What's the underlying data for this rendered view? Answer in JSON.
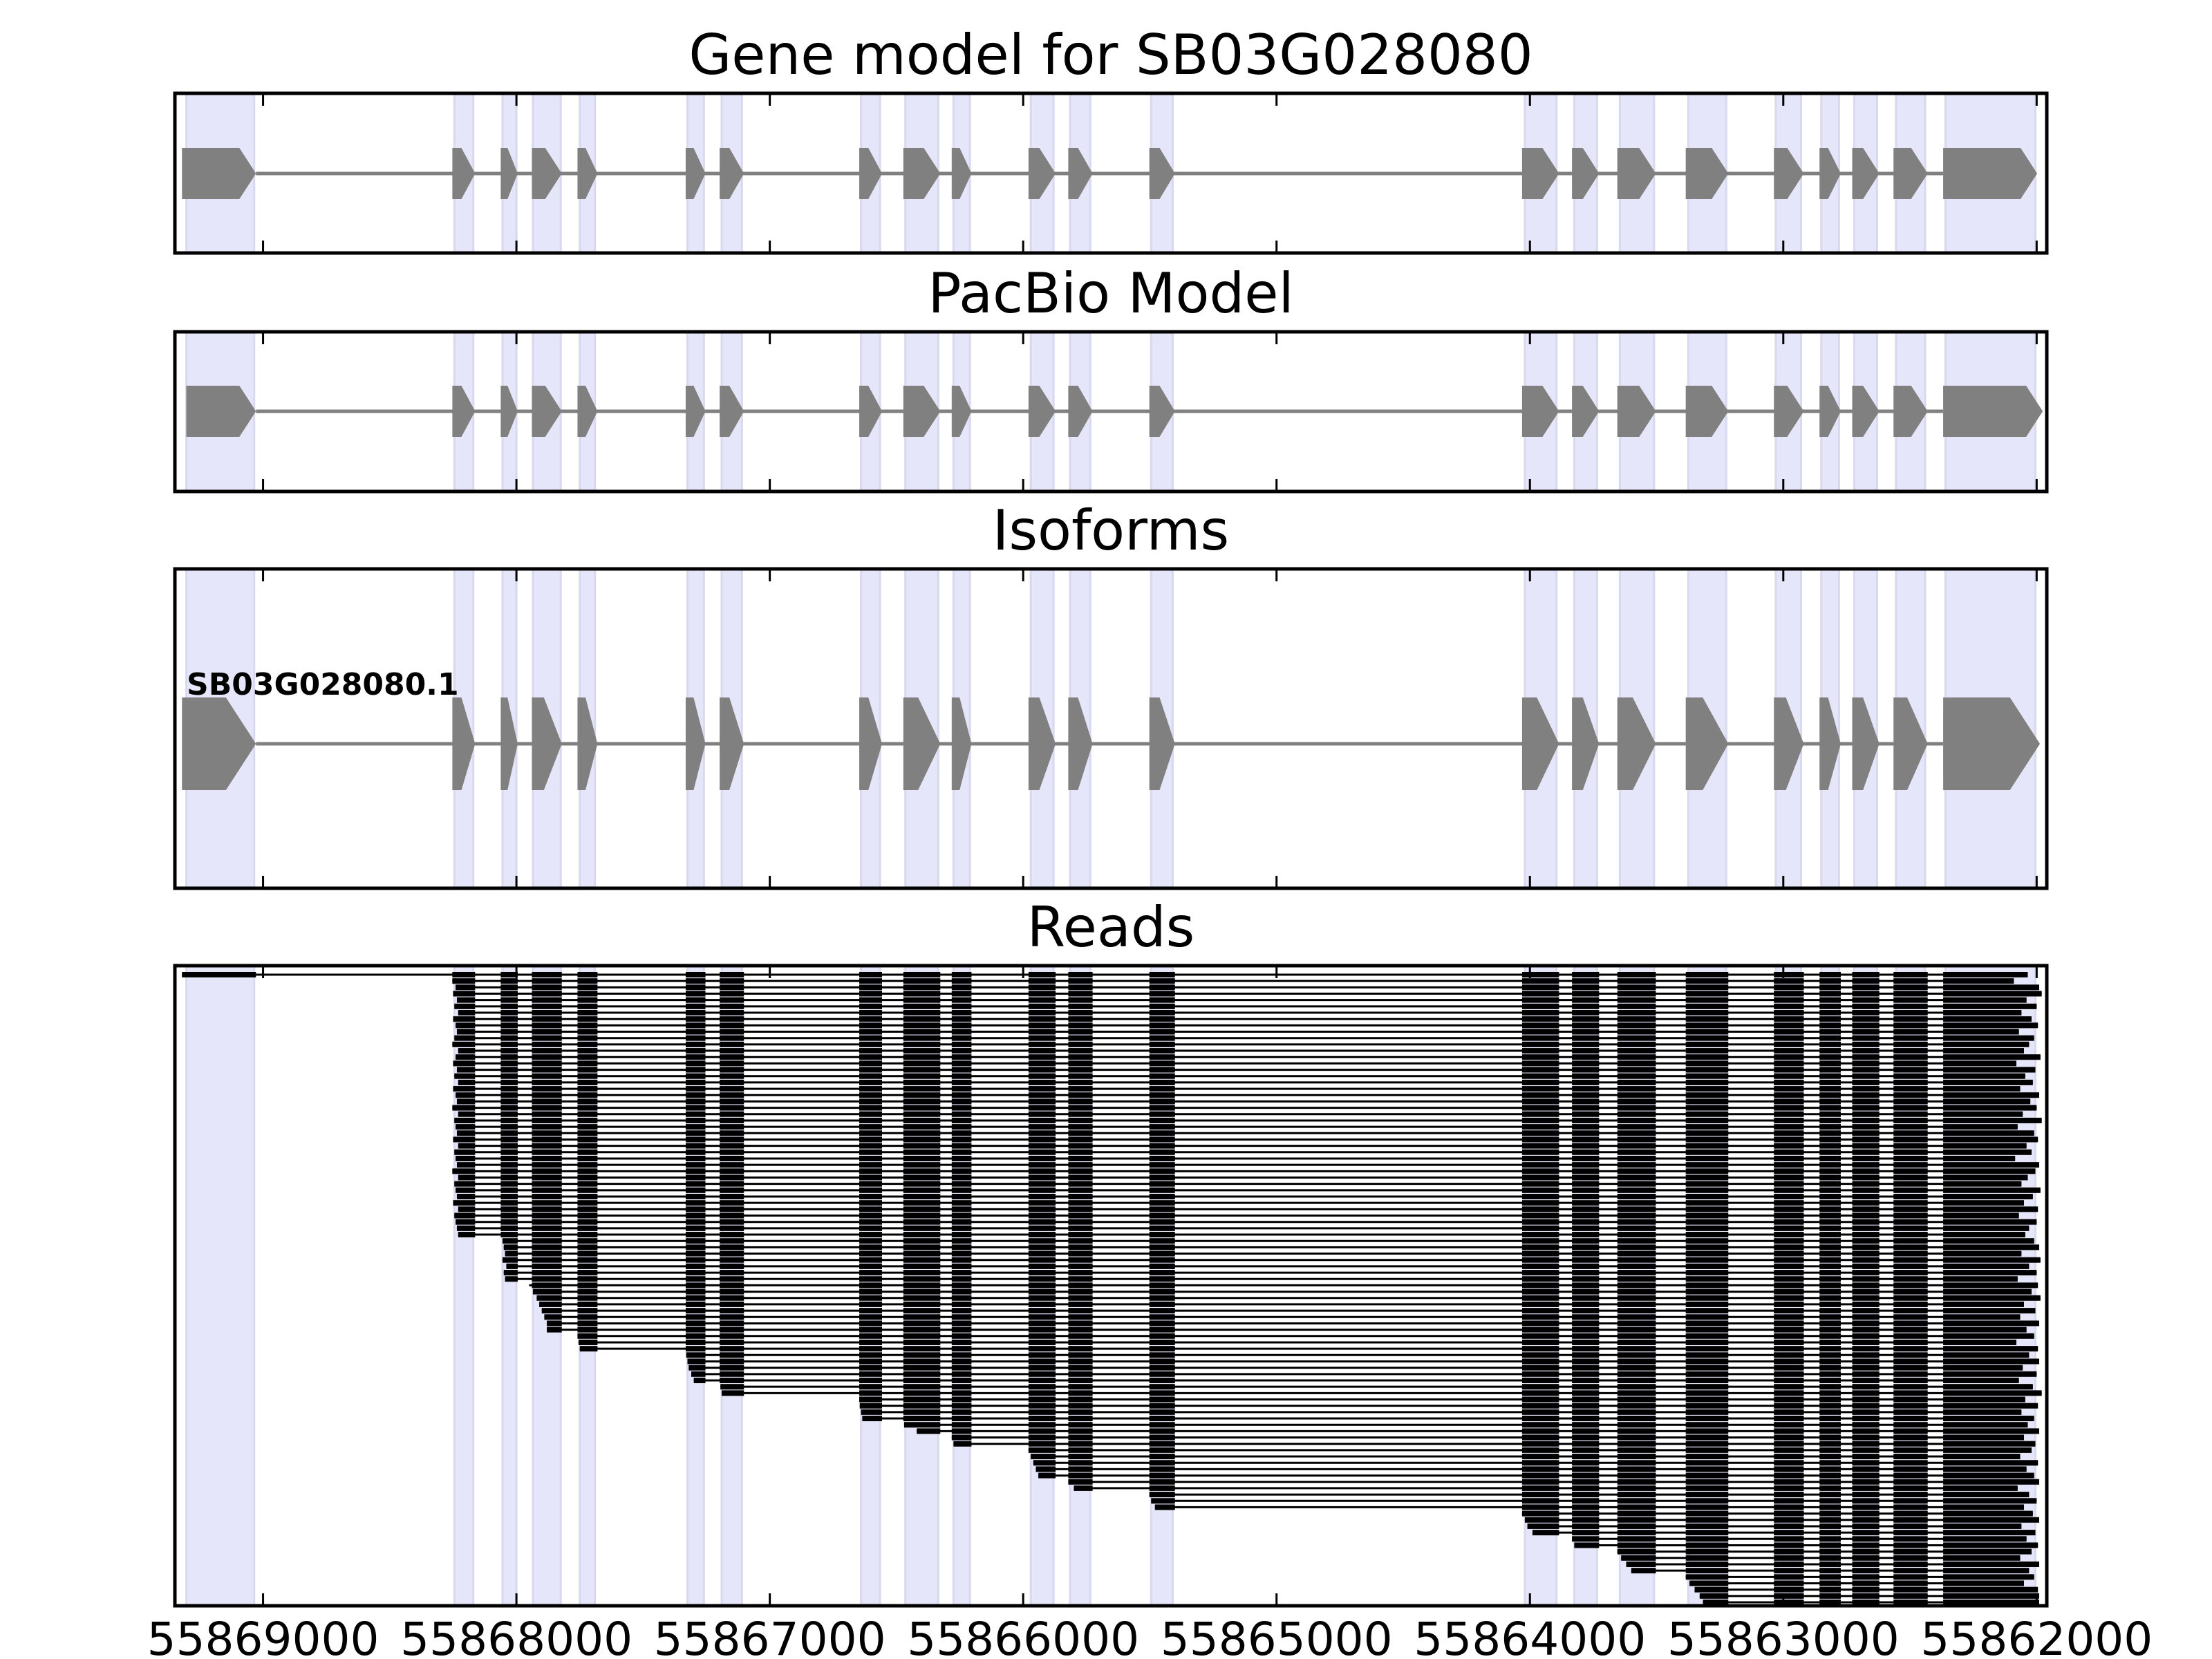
{
  "chart_data": {
    "type": "gene-model-track",
    "xlim": [
      55869348,
      55861960
    ],
    "x_reversed": true,
    "x_ticks": [
      55869000,
      55868000,
      55867000,
      55866000,
      55865000,
      55864000,
      55863000,
      55862000
    ],
    "x_tick_labels": [
      "55869000",
      "55868000",
      "55867000",
      "55866000",
      "55865000",
      "55864000",
      "55863000",
      "55862000"
    ],
    "colors": {
      "exon": "#808080",
      "intron": "#808080",
      "highlight": "#e6e6fa",
      "read": "#000000"
    },
    "highlight_regions": [
      [
        55869303,
        55869035
      ],
      [
        55868245,
        55868170
      ],
      [
        55868055,
        55868000
      ],
      [
        55867935,
        55867825
      ],
      [
        55867750,
        55867690
      ],
      [
        55867325,
        55867260
      ],
      [
        55867190,
        55867110
      ],
      [
        55866640,
        55866565
      ],
      [
        55866465,
        55866335
      ],
      [
        55866275,
        55866210
      ],
      [
        55865970,
        55865880
      ],
      [
        55865815,
        55865735
      ],
      [
        55865495,
        55865410
      ],
      [
        55864020,
        55863895
      ],
      [
        55863825,
        55863735
      ],
      [
        55863645,
        55863510
      ],
      [
        55863375,
        55863225
      ],
      [
        55863030,
        55862930
      ],
      [
        55862850,
        55862780
      ],
      [
        55862720,
        55862630
      ],
      [
        55862555,
        55862440
      ],
      [
        55862360,
        55862005
      ]
    ],
    "panels": [
      {
        "title": "Gene model for SB03G028080",
        "exons": [
          [
            55869320,
            55869028
          ],
          [
            55868253,
            55868163
          ],
          [
            55868062,
            55867995
          ],
          [
            55867939,
            55867821
          ],
          [
            55867759,
            55867680
          ],
          [
            55867332,
            55867254
          ],
          [
            55867198,
            55867102
          ],
          [
            55866647,
            55866557
          ],
          [
            55866473,
            55866327
          ],
          [
            55866282,
            55866204
          ],
          [
            55865979,
            55865872
          ],
          [
            55865822,
            55865726
          ],
          [
            55865502,
            55865401
          ],
          [
            55864031,
            55863885
          ],
          [
            55863834,
            55863727
          ],
          [
            55863655,
            55863503
          ],
          [
            55863385,
            55863217
          ],
          [
            55863037,
            55862919
          ],
          [
            55862857,
            55862773
          ],
          [
            55862728,
            55862621
          ],
          [
            55862565,
            55862430
          ],
          [
            55862369,
            55861998
          ]
        ]
      },
      {
        "title": "PacBio Model",
        "exons": [
          [
            55869303,
            55869028
          ],
          [
            55868253,
            55868163
          ],
          [
            55868062,
            55867995
          ],
          [
            55867939,
            55867821
          ],
          [
            55867759,
            55867680
          ],
          [
            55867332,
            55867254
          ],
          [
            55867198,
            55867102
          ],
          [
            55866647,
            55866557
          ],
          [
            55866473,
            55866327
          ],
          [
            55866282,
            55866204
          ],
          [
            55865979,
            55865872
          ],
          [
            55865822,
            55865726
          ],
          [
            55865502,
            55865401
          ],
          [
            55864031,
            55863885
          ],
          [
            55863834,
            55863727
          ],
          [
            55863655,
            55863503
          ],
          [
            55863385,
            55863217
          ],
          [
            55863037,
            55862919
          ],
          [
            55862857,
            55862773
          ],
          [
            55862728,
            55862621
          ],
          [
            55862565,
            55862430
          ],
          [
            55862369,
            55861976
          ]
        ]
      },
      {
        "title": "Isoforms",
        "isoform_label": "SB03G028080.1",
        "exons": [
          [
            55869320,
            55869028
          ],
          [
            55868253,
            55868163
          ],
          [
            55868062,
            55867995
          ],
          [
            55867939,
            55867821
          ],
          [
            55867759,
            55867680
          ],
          [
            55867332,
            55867254
          ],
          [
            55867198,
            55867102
          ],
          [
            55866647,
            55866557
          ],
          [
            55866473,
            55866327
          ],
          [
            55866282,
            55866204
          ],
          [
            55865979,
            55865872
          ],
          [
            55865822,
            55865726
          ],
          [
            55865502,
            55865401
          ],
          [
            55864031,
            55863885
          ],
          [
            55863834,
            55863727
          ],
          [
            55863655,
            55863503
          ],
          [
            55863385,
            55863217
          ],
          [
            55863037,
            55862919
          ],
          [
            55862857,
            55862773
          ],
          [
            55862728,
            55862621
          ],
          [
            55862565,
            55862430
          ],
          [
            55862369,
            55861987
          ]
        ]
      },
      {
        "title": "Reads",
        "reads": [
          [
            55869320,
            55862035
          ],
          [
            55868253,
            55862090
          ],
          [
            55868240,
            55861990
          ],
          [
            55868250,
            55861980
          ],
          [
            55868235,
            55862040
          ],
          [
            55868245,
            55862000
          ],
          [
            55868230,
            55862060
          ],
          [
            55868250,
            55862020
          ],
          [
            55868240,
            55861995
          ],
          [
            55868235,
            55862070
          ],
          [
            55868245,
            55862010
          ],
          [
            55868253,
            55862030
          ],
          [
            55868230,
            55862050
          ],
          [
            55868240,
            55861985
          ],
          [
            55868250,
            55862080
          ],
          [
            55868235,
            55862005
          ],
          [
            55868245,
            55862045
          ],
          [
            55868230,
            55862015
          ],
          [
            55868250,
            55862065
          ],
          [
            55868240,
            55861990
          ],
          [
            55868235,
            55862025
          ],
          [
            55868253,
            55862000
          ],
          [
            55868230,
            55862055
          ],
          [
            55868245,
            55861980
          ],
          [
            55868240,
            55862075
          ],
          [
            55868235,
            55862010
          ],
          [
            55868250,
            55861995
          ],
          [
            55868230,
            55862040
          ],
          [
            55868245,
            55862020
          ],
          [
            55868240,
            55862085
          ],
          [
            55868235,
            55861990
          ],
          [
            55868253,
            55862005
          ],
          [
            55868230,
            55862035
          ],
          [
            55868245,
            55862060
          ],
          [
            55868240,
            55861985
          ],
          [
            55868235,
            55862015
          ],
          [
            55868250,
            55862050
          ],
          [
            55868230,
            55861995
          ],
          [
            55868245,
            55862070
          ],
          [
            55868240,
            55862000
          ],
          [
            55868235,
            55862030
          ],
          [
            55868230,
            55862045
          ],
          [
            55868055,
            55862010
          ],
          [
            55868050,
            55861990
          ],
          [
            55868045,
            55862060
          ],
          [
            55868055,
            55861985
          ],
          [
            55868040,
            55862030
          ],
          [
            55868050,
            55862000
          ],
          [
            55868045,
            55862075
          ],
          [
            55867950,
            55861995
          ],
          [
            55867935,
            55862020
          ],
          [
            55867920,
            55861985
          ],
          [
            55867910,
            55862050
          ],
          [
            55867900,
            55862005
          ],
          [
            55867890,
            55862065
          ],
          [
            55867880,
            55861990
          ],
          [
            55867880,
            55862040
          ],
          [
            55867759,
            55862010
          ],
          [
            55867755,
            55862080
          ],
          [
            55867750,
            55861995
          ],
          [
            55867330,
            55862030
          ],
          [
            55867325,
            55861990
          ],
          [
            55867320,
            55862055
          ],
          [
            55867310,
            55862000
          ],
          [
            55867300,
            55862070
          ],
          [
            55867195,
            55862015
          ],
          [
            55867190,
            55861980
          ],
          [
            55866647,
            55862045
          ],
          [
            55866645,
            55861995
          ],
          [
            55866640,
            55862060
          ],
          [
            55866635,
            55862010
          ],
          [
            55866470,
            55862035
          ],
          [
            55866420,
            55861990
          ],
          [
            55866282,
            55862050
          ],
          [
            55866275,
            55862005
          ],
          [
            55865979,
            55862020
          ],
          [
            55865970,
            55862065
          ],
          [
            55865960,
            55861995
          ],
          [
            55865950,
            55862040
          ],
          [
            55865940,
            55862010
          ],
          [
            55865822,
            55861990
          ],
          [
            55865800,
            55862075
          ],
          [
            55865502,
            55862030
          ],
          [
            55865495,
            55862000
          ],
          [
            55865480,
            55862050
          ],
          [
            55864031,
            55862015
          ],
          [
            55864020,
            55861990
          ],
          [
            55864010,
            55862060
          ],
          [
            55863990,
            55862005
          ],
          [
            55863834,
            55862040
          ],
          [
            55863825,
            55861995
          ],
          [
            55863655,
            55862020
          ],
          [
            55863640,
            55862065
          ],
          [
            55863620,
            55861990
          ],
          [
            55863600,
            55862030
          ],
          [
            55863385,
            55862010
          ],
          [
            55863370,
            55862050
          ],
          [
            55863350,
            55861995
          ],
          [
            55863330,
            55861990
          ],
          [
            55863317,
            55861990
          ]
        ]
      }
    ]
  }
}
